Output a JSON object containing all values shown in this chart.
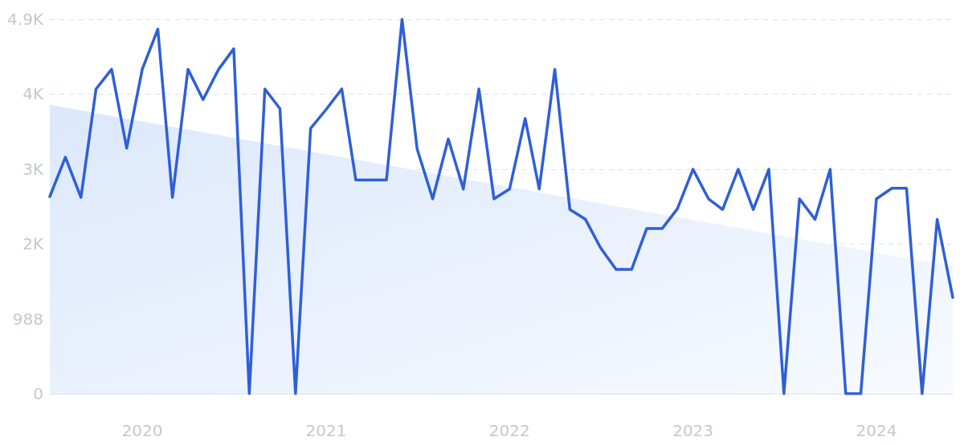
{
  "chart_data": {
    "type": "line",
    "x": [
      "2019-07",
      "2019-08",
      "2019-09",
      "2019-10",
      "2019-11",
      "2019-12",
      "2020-01",
      "2020-02",
      "2020-03",
      "2020-04",
      "2020-05",
      "2020-06",
      "2020-07",
      "2020-08",
      "2020-09",
      "2020-10",
      "2020-11",
      "2020-12",
      "2021-01",
      "2021-02",
      "2021-03",
      "2021-04",
      "2021-05",
      "2021-06",
      "2021-07",
      "2021-08",
      "2021-09",
      "2021-10",
      "2021-11",
      "2021-12",
      "2022-01",
      "2022-02",
      "2022-03",
      "2022-04",
      "2022-05",
      "2022-06",
      "2022-07",
      "2022-08",
      "2022-09",
      "2022-10",
      "2022-11",
      "2022-12",
      "2023-01",
      "2023-02",
      "2023-03",
      "2023-04",
      "2023-05",
      "2023-06",
      "2023-07",
      "2023-08",
      "2023-09",
      "2023-10",
      "2023-11",
      "2023-12",
      "2024-01",
      "2024-02",
      "2024-03",
      "2024-04",
      "2024-05",
      "2024-06"
    ],
    "series": [
      {
        "type": "area",
        "color": "#dce8fb",
        "x": [
          "2019-07",
          "2024-06"
        ],
        "values": [
          3810,
          1680
        ]
      },
      {
        "color": "#2f5fd8",
        "values": [
          2600,
          3120,
          2590,
          4020,
          4280,
          3240,
          4280,
          4810,
          2590,
          4280,
          3880,
          4280,
          4550,
          0,
          4020,
          3760,
          0,
          3500,
          3750,
          4020,
          2820,
          2820,
          2820,
          4940,
          3230,
          2570,
          3360,
          2700,
          4020,
          2570,
          2700,
          3630,
          2700,
          4280,
          2430,
          2300,
          1925,
          1640,
          1640,
          2180,
          2180,
          2440,
          2960,
          2570,
          2430,
          2960,
          2430,
          2960,
          0,
          2570,
          2300,
          2960,
          0,
          0,
          2570,
          2710,
          2710,
          0,
          2300,
          1270
        ]
      }
    ],
    "xlim": [
      "2019-07",
      "2024-06"
    ],
    "xticks": [
      "2020",
      "2021",
      "2022",
      "2023",
      "2024"
    ],
    "ylim": [
      0,
      4940
    ],
    "yticks": [
      0,
      {
        "value": 988,
        "label": "988"
      },
      {
        "value": 1976,
        "label": "2K"
      },
      {
        "value": 2964,
        "label": "3K"
      },
      {
        "value": 3952,
        "label": "4K"
      },
      {
        "value": 4940,
        "label": "4.9K"
      }
    ],
    "grid": "y",
    "marker": "none",
    "line_style": "solid"
  }
}
